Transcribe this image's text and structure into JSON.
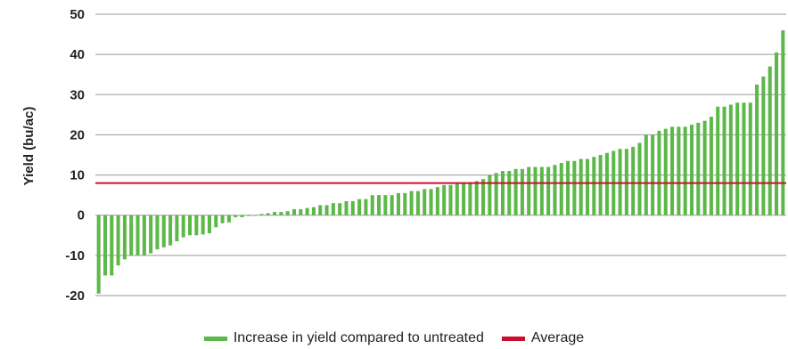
{
  "colors": {
    "bar": "#5cb848",
    "average": "#c8102e",
    "grid": "#999999",
    "text": "#222222"
  },
  "chart_data": {
    "type": "bar",
    "title": "",
    "xlabel": "",
    "ylabel": "Yield (bu/ac)",
    "ylim": [
      -20,
      50
    ],
    "yticks": [
      -20,
      -10,
      0,
      10,
      20,
      30,
      40,
      50
    ],
    "grid": true,
    "legend_position": "bottom",
    "series": [
      {
        "name": "Increase in yield compared to untreated",
        "values": [
          -19.5,
          -15,
          -15,
          -12.5,
          -11,
          -10,
          -10,
          -10,
          -9.5,
          -8.5,
          -8,
          -7.5,
          -6.5,
          -5.5,
          -5,
          -5,
          -4.8,
          -4.5,
          -3,
          -2,
          -1.8,
          -0.5,
          -0.5,
          -0.2,
          0,
          0.3,
          0.5,
          0.8,
          0.8,
          1,
          1.5,
          1.5,
          1.8,
          2,
          2.5,
          2.5,
          3,
          3,
          3.5,
          3.5,
          4,
          4,
          5,
          5,
          5,
          5,
          5.5,
          5.5,
          6,
          6,
          6.5,
          6.5,
          7,
          7.5,
          7.5,
          8,
          8,
          8,
          8.5,
          9,
          10,
          10.5,
          11,
          11,
          11.5,
          11.5,
          12,
          12,
          12,
          12,
          12.5,
          13,
          13.5,
          13.5,
          14,
          14,
          14.5,
          15,
          15.5,
          16,
          16.5,
          16.5,
          17,
          18,
          20,
          20,
          21,
          21.5,
          22,
          22,
          22,
          22.5,
          23,
          23.5,
          24.5,
          27,
          27,
          27.5,
          28,
          28,
          28,
          32.5,
          34.5,
          37,
          40.5,
          46
        ]
      },
      {
        "name": "Average",
        "type": "line",
        "value": 8
      }
    ]
  }
}
